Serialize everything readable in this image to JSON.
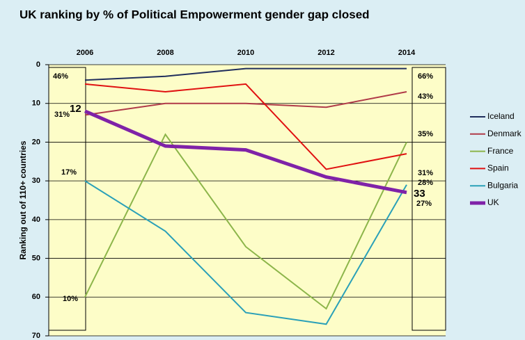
{
  "chart_data": {
    "type": "line",
    "title": "UK ranking by % of Political Empowerment gender gap closed",
    "y_label": "Ranking out of 110+ countries",
    "categories": [
      "2006",
      "2008",
      "2010",
      "2012",
      "2014"
    ],
    "series": [
      {
        "name": "Iceland",
        "color": "#1f2d5c",
        "values": [
          4,
          3,
          1,
          1,
          1
        ]
      },
      {
        "name": "Denmark",
        "color": "#b03a48",
        "values": [
          13,
          10,
          10,
          11,
          7
        ]
      },
      {
        "name": "France",
        "color": "#8cb54a",
        "values": [
          60,
          18,
          47,
          63,
          20
        ]
      },
      {
        "name": "Spain",
        "color": "#e01010",
        "values": [
          5,
          7,
          5,
          27,
          23
        ]
      },
      {
        "name": "Bulgaria",
        "color": "#2aa0b8",
        "values": [
          30,
          43,
          64,
          67,
          31
        ]
      },
      {
        "name": "UK",
        "color": "#7f22a8",
        "values": [
          12,
          21,
          22,
          29,
          33
        ]
      }
    ],
    "ylim": [
      0,
      70
    ],
    "yticks": [
      0,
      10,
      20,
      30,
      40,
      50,
      60,
      70
    ],
    "y_inverted": true,
    "grid": true,
    "legend": "right",
    "annotations": [
      "46%",
      "31%",
      "12",
      "17%",
      "10%",
      "66%",
      "43%",
      "35%",
      "31%",
      "28%",
      "33",
      "27%"
    ]
  }
}
